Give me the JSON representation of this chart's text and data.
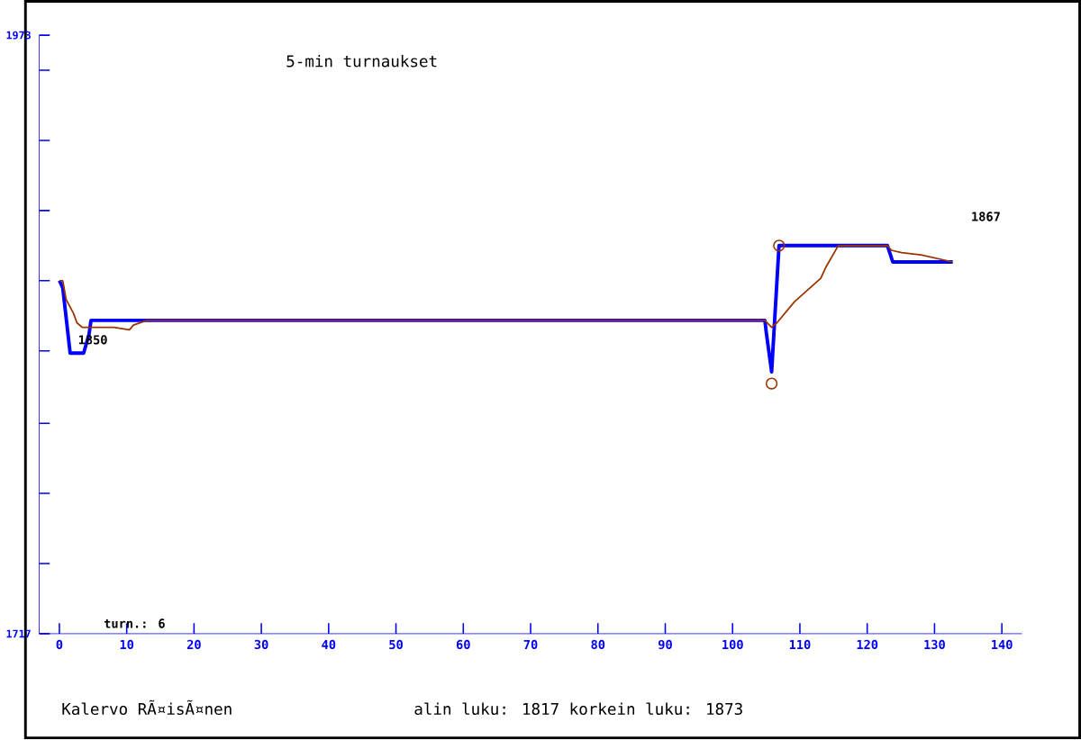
{
  "chart_data": {
    "type": "line",
    "title": "5-min turnaukset",
    "xlim": [
      -3,
      143
    ],
    "xticks": [
      0,
      10,
      20,
      30,
      40,
      50,
      60,
      70,
      80,
      90,
      100,
      110,
      120,
      130,
      140
    ],
    "ylim": [
      1717,
      1973
    ],
    "yticks": [
      1717,
      {
        "value": 1747,
        "label": null
      },
      {
        "value": 1777,
        "label": null
      },
      {
        "value": 1807,
        "label": null
      },
      {
        "value": 1838,
        "label": null
      },
      {
        "value": 1868,
        "label": null
      },
      {
        "value": 1898,
        "label": null
      },
      {
        "value": 1928,
        "label": null
      },
      {
        "value": 1958,
        "label": null
      },
      1973
    ],
    "grid": false,
    "line_style": "solid",
    "series": [
      {
        "color": "#0000ff",
        "x": [
          0,
          0.5,
          1.6,
          3.6,
          4.4,
          4.7,
          13,
          104.8,
          105.0,
          105.8,
          106.9,
          115.7,
          123,
          123.8,
          132.7
        ],
        "values": [
          1868,
          1865,
          1837,
          1837,
          1845,
          1851,
          1851,
          1851,
          1846,
          1829,
          1883,
          1883,
          1883,
          1876,
          1876
        ]
      },
      {
        "color": "#993300",
        "x": [
          0,
          0.5,
          1,
          2.1,
          2.6,
          3.4,
          4.7,
          6.5,
          8.1,
          10.4,
          11,
          13,
          104.8,
          105.8,
          106.6,
          109.2,
          113.1,
          113.9,
          115.7,
          123,
          123.6,
          125.1,
          128,
          132.7
        ],
        "values": [
          1868,
          1868,
          1860,
          1854,
          1850,
          1848,
          1848,
          1848,
          1848,
          1847,
          1849,
          1851,
          1851,
          1848,
          1850,
          1859,
          1869,
          1874,
          1883,
          1883,
          1881,
          1880,
          1879,
          1876
        ]
      },
      {
        "type": "scatter",
        "marker": "circle",
        "color": "#993300",
        "x": [
          105.8,
          106.9
        ],
        "values": [
          1824,
          1883
        ]
      }
    ],
    "annotations": [
      "1850",
      "1867",
      "turn.: 6",
      "Kalervo RÃ¤isÃ¤nen",
      "alin luku: 1817  korkein luku: 1873"
    ]
  }
}
